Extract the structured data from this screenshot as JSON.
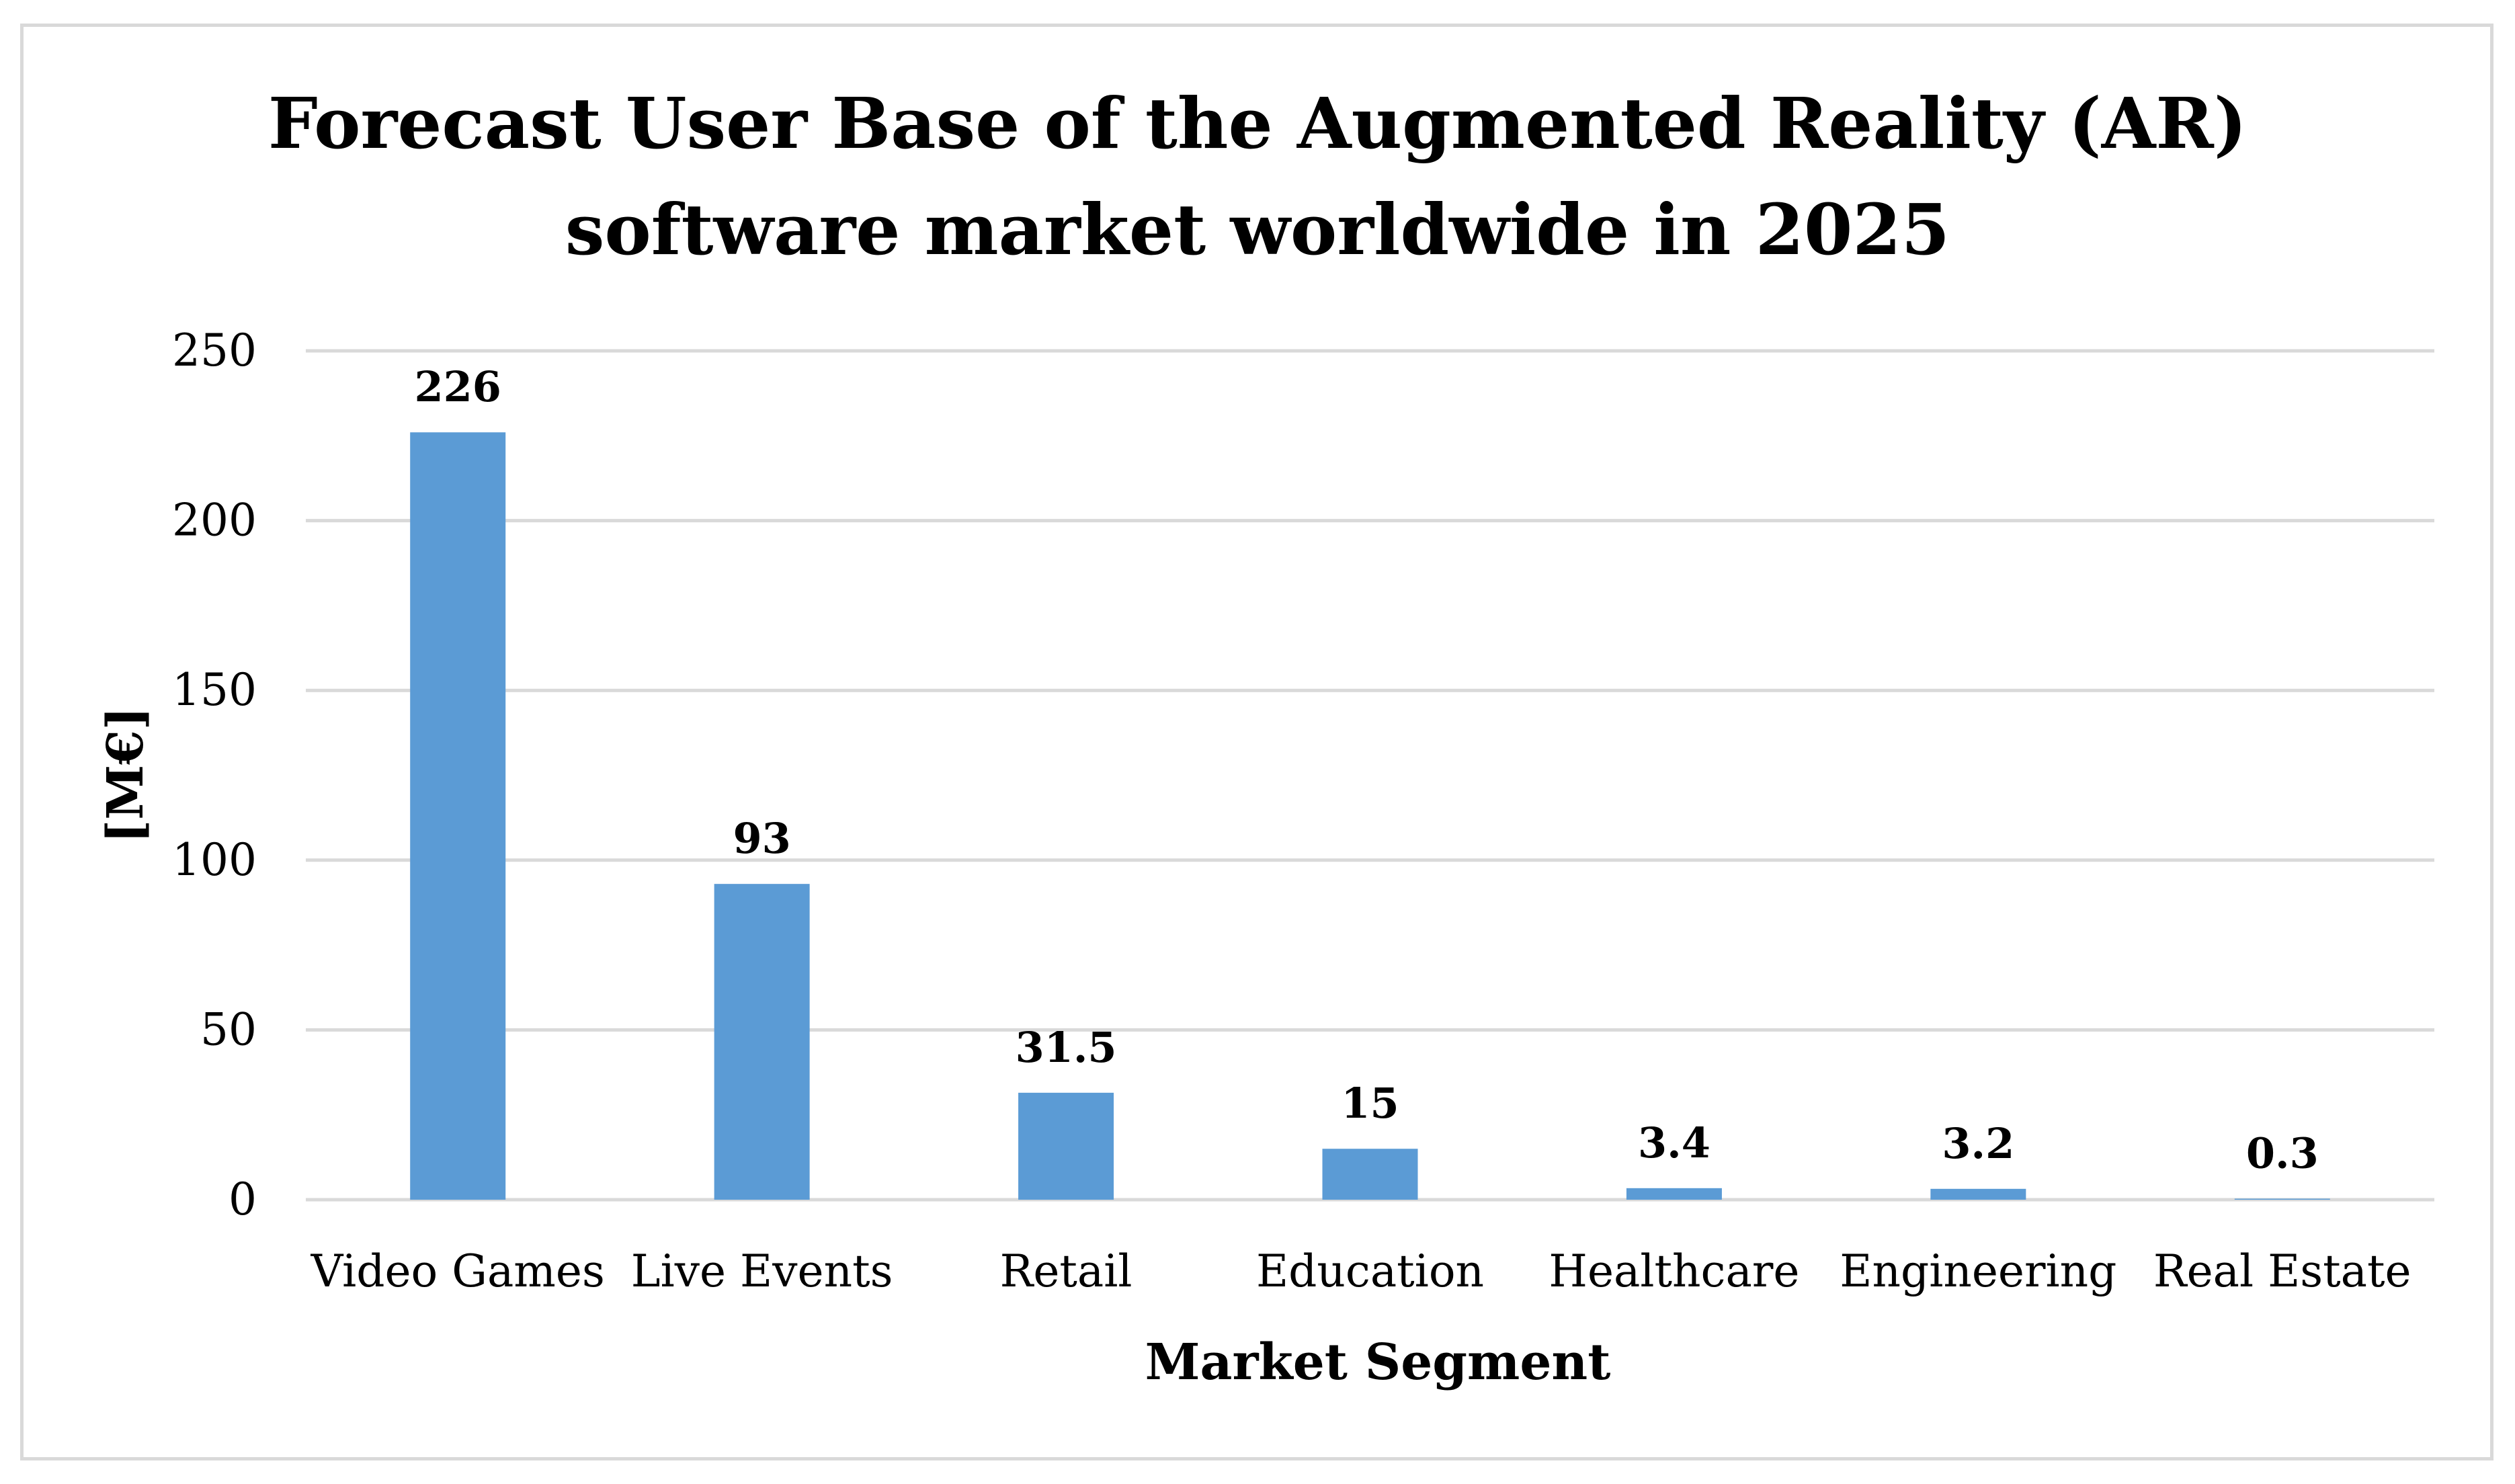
{
  "chart_data": {
    "type": "bar",
    "title": "Forecast User Base of the Augmented Reality (AR) software market worldwide in 2025",
    "title_lines": [
      "Forecast User Base of the Augmented Reality (AR)",
      "software market worldwide in 2025"
    ],
    "xlabel": "Market Segment",
    "ylabel": "[M€]",
    "categories": [
      "Video Games",
      "Live Events",
      "Retail",
      "Education",
      "Healthcare",
      "Engineering",
      "Real Estate"
    ],
    "values": [
      226,
      93,
      31.5,
      15,
      3.4,
      3.2,
      0.3
    ],
    "data_labels": [
      "226",
      "93",
      "31.5",
      "15",
      "3.4",
      "3.2",
      "0.3"
    ],
    "ylim": [
      0,
      250
    ],
    "yticks": [
      0,
      50,
      100,
      150,
      200,
      250
    ],
    "ytick_labels": [
      "0",
      "50",
      "100",
      "150",
      "200",
      "250"
    ],
    "grid": true,
    "legend": "none",
    "bar_color": "#5b9bd5",
    "gridline_color": "#d9d9d9",
    "border_color": "#d9d9d9"
  }
}
